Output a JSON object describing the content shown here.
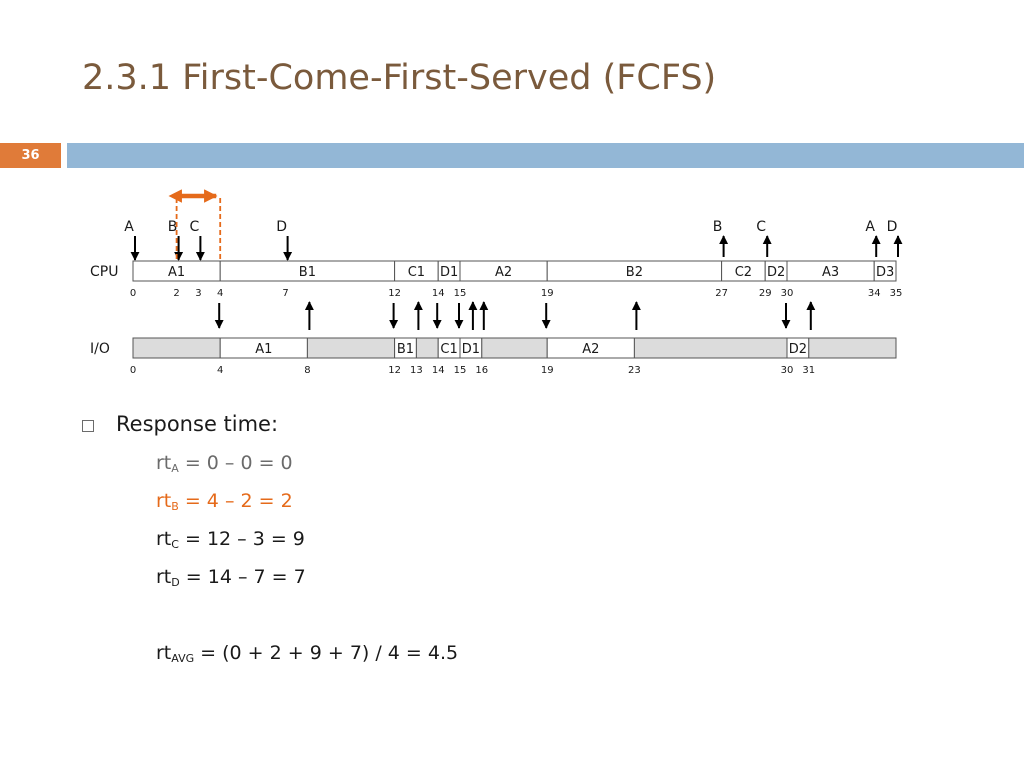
{
  "slide": {
    "title": "2.3.1 First-Come-First-Served (FCFS)",
    "number": "36"
  },
  "diagram": {
    "cpu_label": "CPU",
    "io_label": "I/O",
    "cpu_segments": [
      {
        "label": "A1",
        "start": 0,
        "end": 4
      },
      {
        "label": "B1",
        "start": 4,
        "end": 12
      },
      {
        "label": "C1",
        "start": 12,
        "end": 14
      },
      {
        "label": "D1",
        "start": 14,
        "end": 15
      },
      {
        "label": "A2",
        "start": 15,
        "end": 19
      },
      {
        "label": "B2",
        "start": 19,
        "end": 27
      },
      {
        "label": "C2",
        "start": 27,
        "end": 29
      },
      {
        "label": "D2",
        "start": 29,
        "end": 30
      },
      {
        "label": "A3",
        "start": 30,
        "end": 34
      },
      {
        "label": "D3",
        "start": 34,
        "end": 35
      }
    ],
    "cpu_ticks": [
      "0",
      "2",
      "3",
      "4",
      "7",
      "12",
      "14",
      "15",
      "19",
      "27",
      "29",
      "30",
      "34",
      "35"
    ],
    "io_segments": [
      {
        "label": "",
        "start": 0,
        "end": 4,
        "idle": true
      },
      {
        "label": "A1",
        "start": 4,
        "end": 8,
        "idle": false
      },
      {
        "label": "",
        "start": 8,
        "end": 12,
        "idle": true
      },
      {
        "label": "B1",
        "start": 12,
        "end": 13,
        "idle": false
      },
      {
        "label": "",
        "start": 13,
        "end": 14,
        "idle": true
      },
      {
        "label": "C1",
        "start": 14,
        "end": 15,
        "idle": false
      },
      {
        "label": "D1",
        "start": 15,
        "end": 16,
        "idle": false
      },
      {
        "label": "",
        "start": 16,
        "end": 19,
        "idle": true
      },
      {
        "label": "A2",
        "start": 19,
        "end": 23,
        "idle": false
      },
      {
        "label": "",
        "start": 23,
        "end": 30,
        "idle": true
      },
      {
        "label": "D2",
        "start": 30,
        "end": 31,
        "idle": false
      },
      {
        "label": "",
        "start": 31,
        "end": 35,
        "idle": true
      }
    ],
    "io_ticks": [
      "0",
      "4",
      "8",
      "12",
      "13",
      "14",
      "15",
      "16",
      "19",
      "23",
      "30",
      "31"
    ],
    "arrivals": [
      {
        "label": "A",
        "t": 0
      },
      {
        "label": "B",
        "t": 2
      },
      {
        "label": "C",
        "t": 3
      },
      {
        "label": "D",
        "t": 7
      }
    ],
    "completions": [
      {
        "label": "B",
        "t": 27
      },
      {
        "label": "C",
        "t": 29
      },
      {
        "label": "A",
        "t": 34
      },
      {
        "label": "D",
        "t": 35
      }
    ],
    "mid_down": [
      4,
      12,
      14,
      15,
      19,
      30
    ],
    "mid_up": [
      8,
      13,
      15.5,
      16,
      23,
      31
    ],
    "highlight": {
      "start": 2,
      "end": 4,
      "color": "#e56a1a"
    }
  },
  "response": {
    "heading": "Response time:",
    "lines": [
      {
        "base": "rt",
        "sub": "A",
        "expr": " = 0 – 0 = 0",
        "color": "gray"
      },
      {
        "base": "rt",
        "sub": "B",
        "expr": " = 4 – 2 = 2",
        "color": "orange"
      },
      {
        "base": "rt",
        "sub": "C",
        "expr": " = 12 – 3 = 9",
        "color": "black"
      },
      {
        "base": "rt",
        "sub": "D",
        "expr": " = 14 – 7 = 7",
        "color": "black"
      }
    ],
    "avg": {
      "base": "rt",
      "sub": "AVG",
      "expr": " = (0 + 2 + 9 + 7) / 4 = 4.5"
    }
  }
}
